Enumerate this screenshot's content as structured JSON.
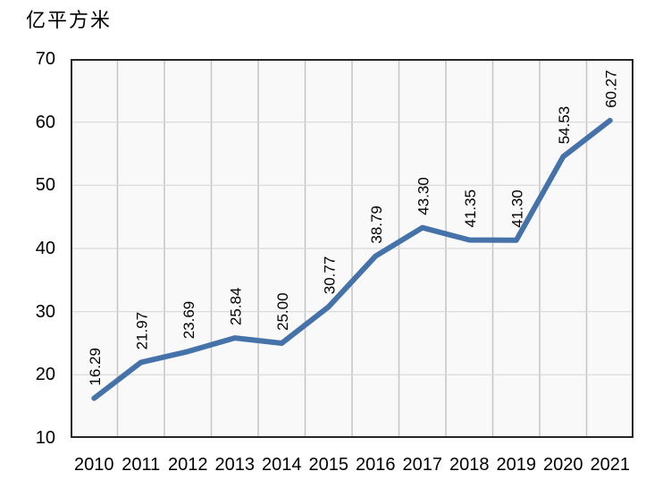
{
  "unit_label": "亿平方米",
  "colors": {
    "line": "#4573A9",
    "plot_bg": "#f9f9f9",
    "grid_vertical": "#c4c4c4",
    "grid_horizontal": "#d8d8d8",
    "plot_border": "#262626",
    "text": "#000000",
    "page_bg": "#ffffff"
  },
  "chart_data": {
    "type": "line",
    "title": "",
    "unit_label": "亿平方米",
    "categories": [
      "2010",
      "2011",
      "2012",
      "2013",
      "2014",
      "2015",
      "2016",
      "2017",
      "2018",
      "2019",
      "2020",
      "2021"
    ],
    "values": [
      16.29,
      21.97,
      23.69,
      25.84,
      25.0,
      30.77,
      38.79,
      43.3,
      41.35,
      41.3,
      54.53,
      60.27
    ],
    "data_labels": [
      "16.29",
      "21.97",
      "23.69",
      "25.84",
      "25.00",
      "30.77",
      "38.79",
      "43.30",
      "41.35",
      "41.30",
      "54.53",
      "60.27"
    ],
    "data_label_rotation": -90,
    "ylim": [
      10,
      70
    ],
    "yticks": [
      10,
      20,
      30,
      40,
      50,
      60,
      70
    ],
    "xlabel": "",
    "ylabel": "",
    "grid": true,
    "legend": "none",
    "markers": false
  }
}
